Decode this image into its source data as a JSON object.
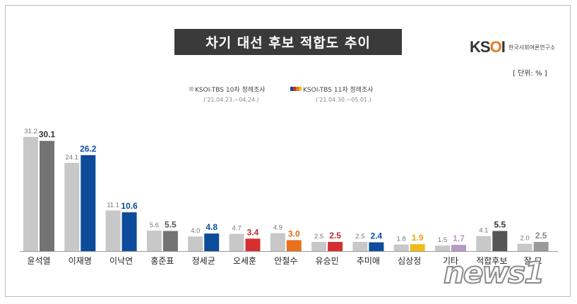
{
  "header": {
    "title": "차기 대선 후보 적합도 추이",
    "logo_text": "KSOI",
    "logo_sub": "한국사회여론연구소",
    "unit": "[ 단위: % ]"
  },
  "legend": {
    "series1_label": "KSOI-TBS 10차 정례조사",
    "series1_date": "('21.04.23.~04.24.)",
    "series2_label": "KSOI-TBS 11차 정례조사",
    "series2_date": "('21.04.30.~05.01.)"
  },
  "watermark": "news1",
  "chart_data": {
    "type": "bar",
    "title": "차기 대선 후보 적합도 추이",
    "unit": "%",
    "categories": [
      "윤석열",
      "이재명",
      "이낙연",
      "홍준표",
      "정세균",
      "오세훈",
      "안철수",
      "유승민",
      "추미애",
      "심상정",
      "기타",
      "적합후보",
      "잘 모"
    ],
    "series": [
      {
        "name": "KSOI-TBS 10차 정례조사",
        "values": [
          31.2,
          24.1,
          11.1,
          5.6,
          4.0,
          4.7,
          4.9,
          2.5,
          2.5,
          1.8,
          1.5,
          4.1,
          2.0
        ]
      },
      {
        "name": "KSOI-TBS 11차 정례조사",
        "values": [
          30.1,
          26.2,
          10.6,
          5.5,
          4.8,
          3.4,
          3.0,
          2.5,
          2.4,
          1.9,
          1.7,
          5.5,
          2.5
        ]
      }
    ],
    "series2_colors": [
      "#737373",
      "#0d4c9a",
      "#0d4c9a",
      "#737373",
      "#0d4c9a",
      "#d62f2f",
      "#e8721c",
      "#d62f2f",
      "#0d4c9a",
      "#f3b81c",
      "#b49ac4",
      "#555555",
      "#9a9a9a"
    ],
    "series2_label_colors": [
      "#333333",
      "#0d4c9a",
      "#0d4c9a",
      "#555555",
      "#0d4c9a",
      "#c0282a",
      "#e06a12",
      "#c0282a",
      "#0d4c9a",
      "#e0a90f",
      "#b49ac4",
      "#333333",
      "#888888"
    ],
    "series1_color": "#c8c8c8",
    "ylim": [
      0,
      35
    ],
    "grid": false,
    "legend_position": "top"
  }
}
